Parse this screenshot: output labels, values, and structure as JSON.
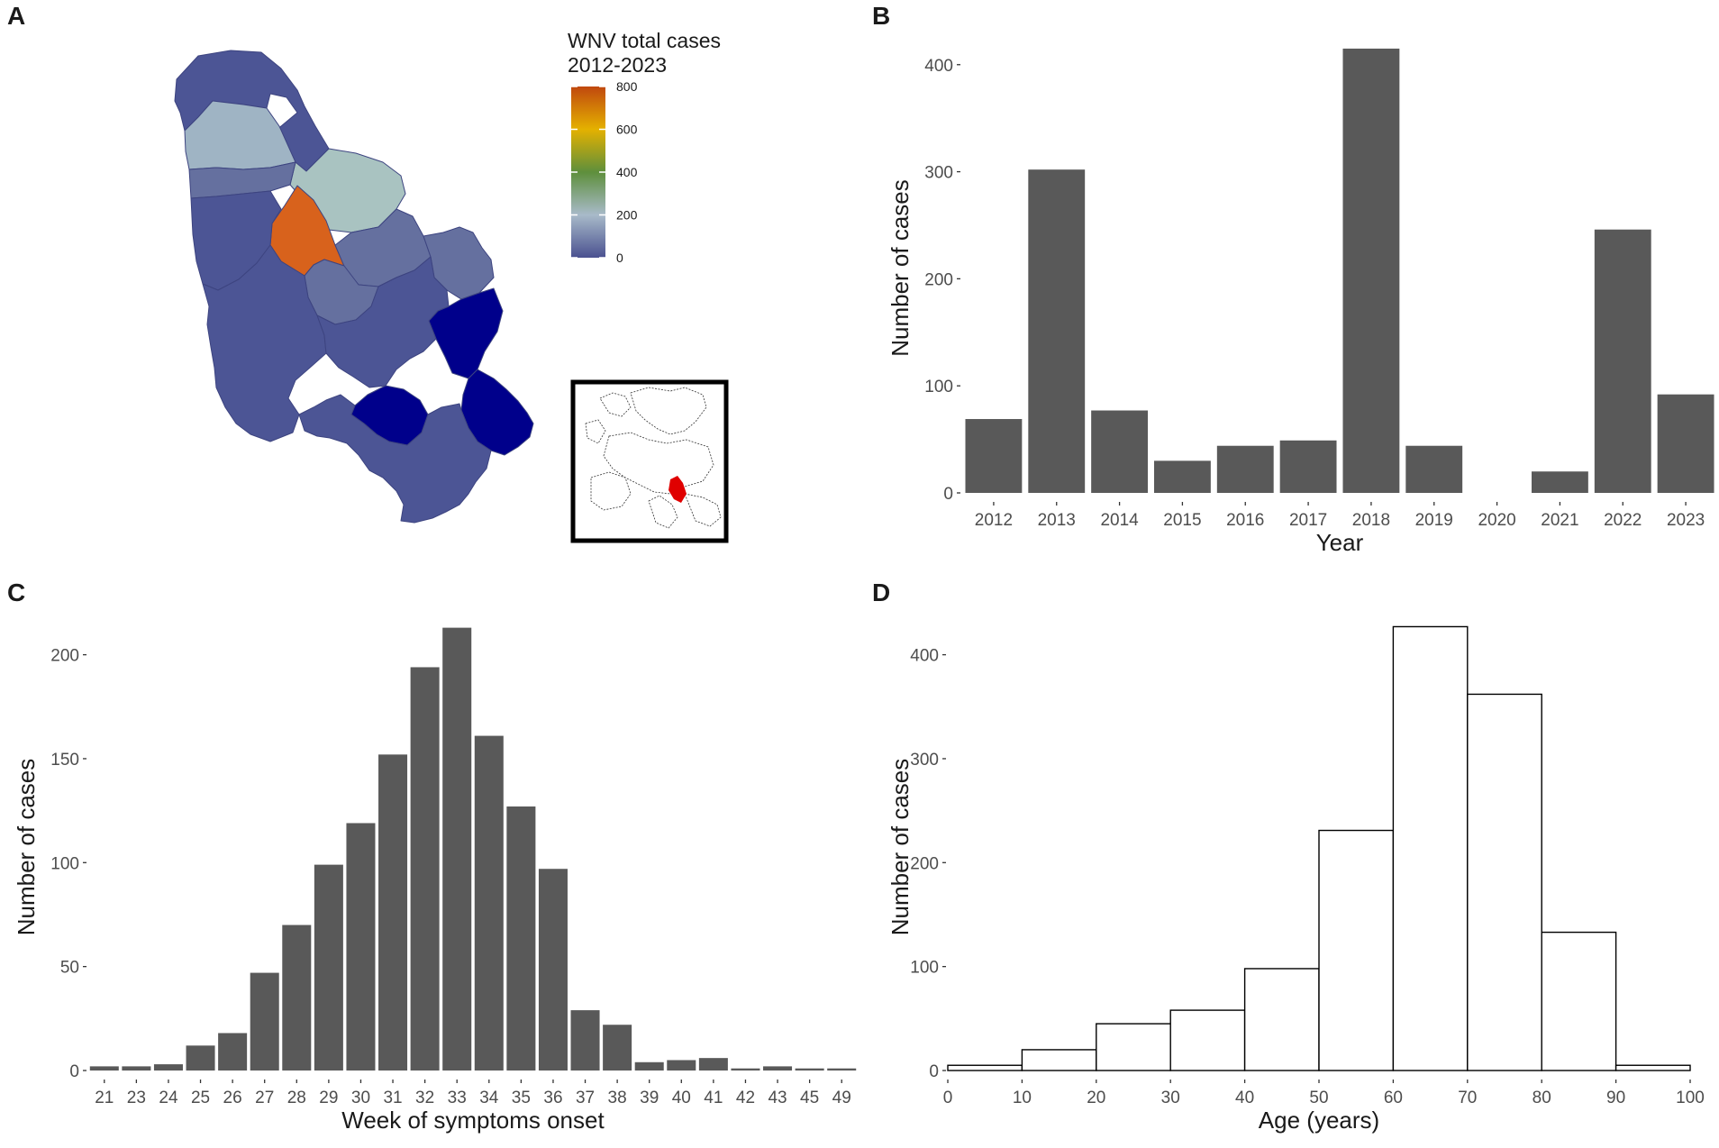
{
  "panels": {
    "a": "A",
    "b": "B",
    "c": "C",
    "d": "D"
  },
  "map": {
    "legend_title_line1": "WNV total cases",
    "legend_title_line2": "2012-2023",
    "legend_ticks": [
      "800",
      "600",
      "400",
      "200",
      "0"
    ],
    "legend_range": [
      0,
      800
    ],
    "colors": {
      "scale": [
        "#4a5190",
        "#a8bac9",
        "#5e8f3c",
        "#e4b100",
        "#c0480e"
      ],
      "low": "#4c5595",
      "mid_low": "#65709f",
      "light_blue": "#9fb4c4",
      "pale": "#a9c3c1",
      "orange": "#d8621c",
      "navy": "#00008b",
      "inset_highlight": "#e00000"
    }
  },
  "chart_data": [
    {
      "id": "B",
      "type": "bar",
      "categories": [
        "2012",
        "2013",
        "2014",
        "2015",
        "2016",
        "2017",
        "2018",
        "2019",
        "2020",
        "2021",
        "2022",
        "2023"
      ],
      "values": [
        69,
        302,
        77,
        30,
        44,
        49,
        415,
        44,
        0,
        20,
        246,
        92
      ],
      "xlabel": "Year",
      "ylabel": "Number of cases",
      "ylim": [
        0,
        420
      ],
      "yticks": [
        "0",
        "100",
        "200",
        "300",
        "400"
      ],
      "bar_color": "#595959"
    },
    {
      "id": "C",
      "type": "bar",
      "categories": [
        "21",
        "23",
        "24",
        "25",
        "26",
        "27",
        "28",
        "29",
        "30",
        "31",
        "32",
        "33",
        "34",
        "35",
        "36",
        "37",
        "38",
        "39",
        "40",
        "41",
        "42",
        "43",
        "45",
        "49"
      ],
      "values": [
        2,
        2,
        3,
        12,
        18,
        47,
        70,
        99,
        119,
        152,
        194,
        213,
        161,
        127,
        97,
        29,
        22,
        4,
        5,
        6,
        1,
        2,
        1,
        1
      ],
      "xlabel": "Week of symptoms onset",
      "ylabel": "Number of cases",
      "ylim": [
        0,
        215
      ],
      "yticks": [
        "0",
        "50",
        "100",
        "150",
        "200"
      ],
      "bar_color": "#595959"
    },
    {
      "id": "D",
      "type": "histogram",
      "bins": [
        [
          0,
          10
        ],
        [
          10,
          20
        ],
        [
          20,
          30
        ],
        [
          30,
          40
        ],
        [
          40,
          50
        ],
        [
          50,
          60
        ],
        [
          60,
          70
        ],
        [
          70,
          80
        ],
        [
          80,
          90
        ],
        [
          90,
          100
        ]
      ],
      "values": [
        5,
        20,
        45,
        58,
        98,
        231,
        427,
        362,
        133,
        5
      ],
      "xlabel": "Age (years)",
      "ylabel": "Number of cases",
      "xlim": [
        0,
        100
      ],
      "ylim": [
        0,
        430
      ],
      "xticks": [
        "0",
        "10",
        "20",
        "30",
        "40",
        "50",
        "60",
        "70",
        "80",
        "90",
        "100"
      ],
      "yticks": [
        "0",
        "100",
        "200",
        "300",
        "400"
      ],
      "bar_fill": "#ffffff",
      "bar_stroke": "#000000"
    }
  ]
}
